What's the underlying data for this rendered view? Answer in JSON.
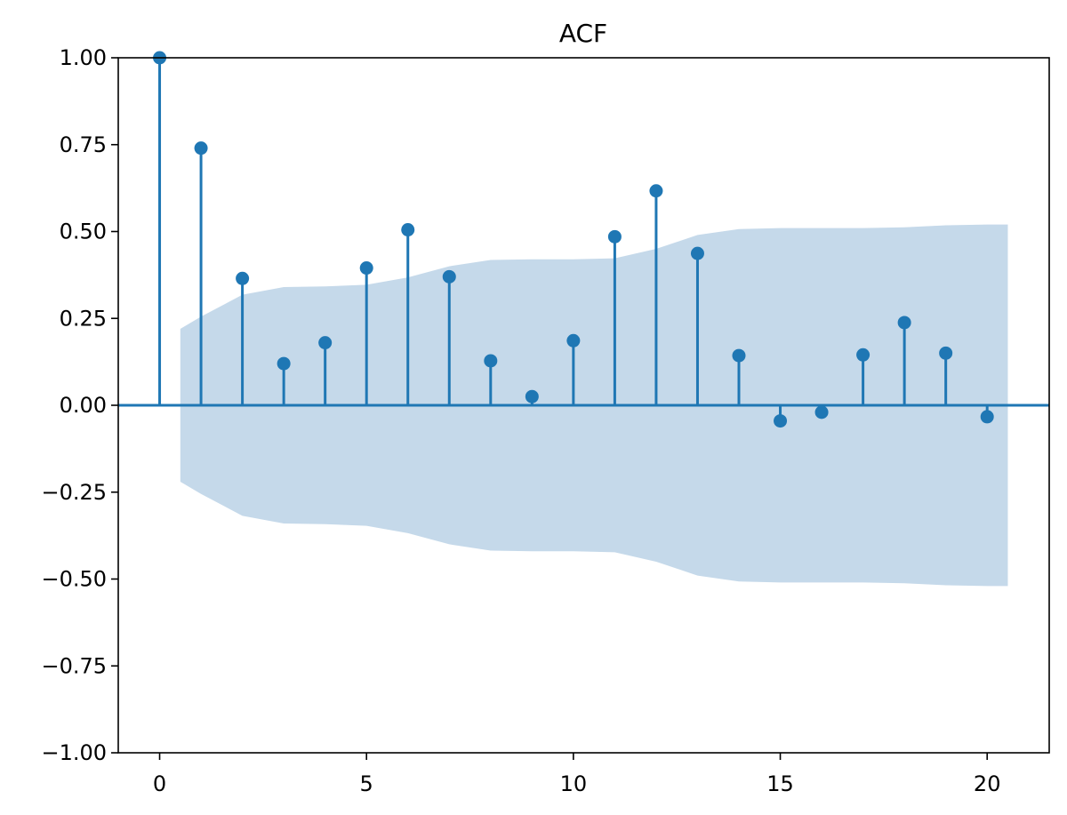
{
  "chart_data": {
    "type": "scatter",
    "title": "ACF",
    "xlabel": "",
    "ylabel": "",
    "xlim": [
      -1.0,
      21.5
    ],
    "ylim": [
      -1.0,
      1.0
    ],
    "x_ticks": [
      0,
      5,
      10,
      15,
      20
    ],
    "x_tick_labels": [
      "0",
      "5",
      "10",
      "15",
      "20"
    ],
    "y_ticks": [
      1.0,
      0.75,
      0.5,
      0.25,
      0.0,
      -0.25,
      -0.5,
      -0.75,
      -1.0
    ],
    "y_tick_labels": [
      "1.00",
      "0.75",
      "0.50",
      "0.25",
      "0.00",
      "−0.25",
      "−0.50",
      "−0.75",
      "−1.00"
    ],
    "grid": false,
    "style": "stem",
    "series": [
      {
        "lags": [
          0,
          1,
          2,
          3,
          4,
          5,
          6,
          7,
          8,
          9,
          10,
          11,
          12,
          13,
          14,
          15,
          16,
          17,
          18,
          19,
          20
        ],
        "values": [
          1.0,
          0.74,
          0.365,
          0.12,
          0.18,
          0.395,
          0.505,
          0.37,
          0.128,
          0.025,
          0.186,
          0.485,
          0.617,
          0.437,
          0.143,
          -0.045,
          -0.02,
          0.145,
          0.238,
          0.15,
          -0.033
        ]
      }
    ],
    "confidence_band": {
      "x": [
        0.5,
        1,
        2,
        3,
        4,
        5,
        6,
        7,
        8,
        9,
        10,
        11,
        12,
        13,
        14,
        15,
        16,
        17,
        18,
        19,
        20,
        20.5
      ],
      "upper": [
        0.22,
        0.255,
        0.318,
        0.34,
        0.342,
        0.347,
        0.368,
        0.4,
        0.418,
        0.42,
        0.42,
        0.423,
        0.45,
        0.49,
        0.507,
        0.51,
        0.51,
        0.51,
        0.512,
        0.518,
        0.52,
        0.52
      ],
      "lower": [
        -0.22,
        -0.255,
        -0.318,
        -0.34,
        -0.342,
        -0.347,
        -0.368,
        -0.4,
        -0.418,
        -0.42,
        -0.42,
        -0.423,
        -0.45,
        -0.49,
        -0.507,
        -0.51,
        -0.51,
        -0.51,
        -0.512,
        -0.518,
        -0.52,
        -0.52
      ]
    },
    "colors": {
      "stem": "#1f77b4",
      "band": "#c5d9ea",
      "axis": "#000000"
    }
  }
}
